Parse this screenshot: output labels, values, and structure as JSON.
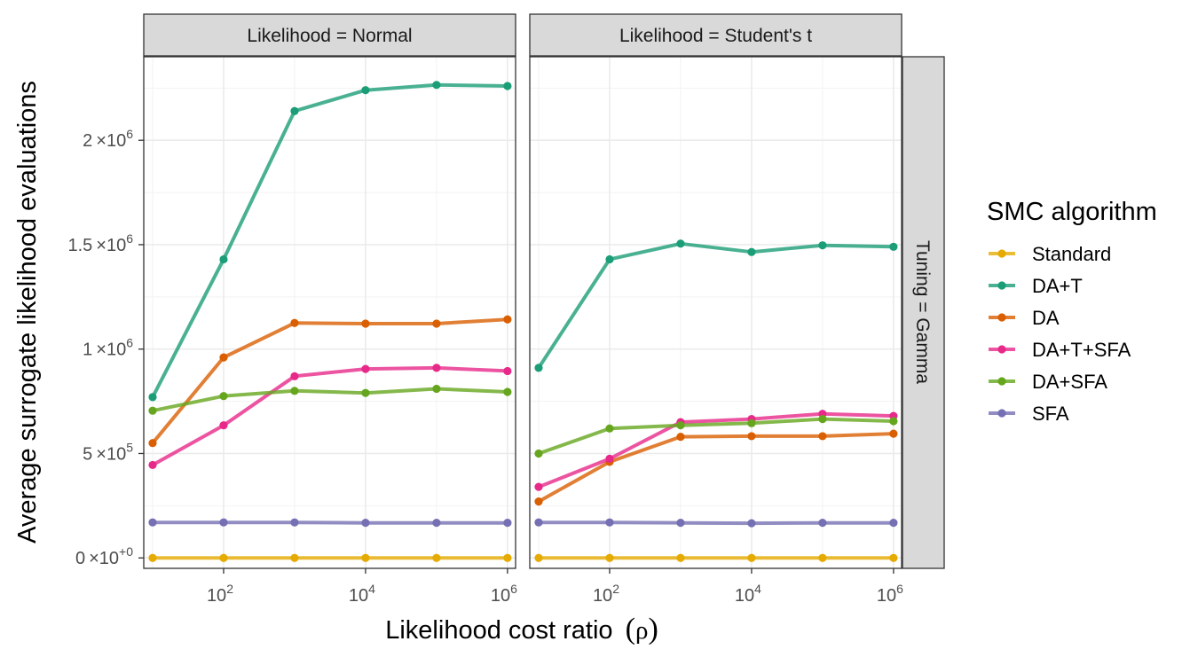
{
  "chart_data": {
    "type": "line",
    "facet_cols": [
      "Likelihood = Normal",
      "Likelihood = Student's t"
    ],
    "facet_row": "Tuning = Gamma",
    "xlabel_text": "Likelihood cost ratio",
    "xlabel_symbol": "ρ",
    "ylabel": "Average surrogate likelihood evaluations",
    "x_scale": "log10",
    "x": [
      10,
      100,
      1000,
      10000,
      100000,
      1000000
    ],
    "xlim": [
      7.5,
      1300000
    ],
    "ylim": [
      -50000,
      2400000
    ],
    "x_ticks": [
      {
        "value": 100,
        "base": "10",
        "exp": "2"
      },
      {
        "value": 10000,
        "base": "10",
        "exp": "4"
      },
      {
        "value": 1000000,
        "base": "10",
        "exp": "6"
      }
    ],
    "y_ticks": [
      {
        "value": 0,
        "mantissa": "0",
        "exp": "+0"
      },
      {
        "value": 500000,
        "mantissa": "5",
        "exp": "5"
      },
      {
        "value": 1000000,
        "mantissa": "1",
        "exp": "6"
      },
      {
        "value": 1500000,
        "mantissa": "1.5",
        "exp": "6"
      },
      {
        "value": 2000000,
        "mantissa": "2",
        "exp": "6"
      }
    ],
    "grid": true,
    "legend_title": "SMC algorithm",
    "legend_position": "right",
    "panels": [
      {
        "facet": "Likelihood = Normal",
        "series": [
          {
            "name": "Standard",
            "color": "#E6AB02",
            "values": [
              0,
              0,
              0,
              0,
              0,
              0
            ]
          },
          {
            "name": "DA+T",
            "color": "#1B9E77",
            "values": [
              770000,
              1430000,
              2140000,
              2240000,
              2265000,
              2260000
            ]
          },
          {
            "name": "DA",
            "color": "#D95F02",
            "values": [
              550000,
              960000,
              1125000,
              1122000,
              1122000,
              1142000
            ]
          },
          {
            "name": "DA+T+SFA",
            "color": "#E7298A",
            "values": [
              445000,
              635000,
              870000,
              905000,
              910000,
              895000
            ]
          },
          {
            "name": "DA+SFA",
            "color": "#66A61E",
            "values": [
              705000,
              775000,
              800000,
              790000,
              810000,
              795000
            ]
          },
          {
            "name": "SFA",
            "color": "#7570B3",
            "values": [
              170000,
              170000,
              170000,
              168000,
              168000,
              168000
            ]
          }
        ]
      },
      {
        "facet": "Likelihood = Student's t",
        "series": [
          {
            "name": "Standard",
            "color": "#E6AB02",
            "values": [
              0,
              0,
              0,
              0,
              0,
              0
            ]
          },
          {
            "name": "DA+T",
            "color": "#1B9E77",
            "values": [
              910000,
              1430000,
              1505000,
              1465000,
              1497000,
              1490000
            ]
          },
          {
            "name": "DA",
            "color": "#D95F02",
            "values": [
              270000,
              460000,
              580000,
              583000,
              583000,
              595000
            ]
          },
          {
            "name": "DA+T+SFA",
            "color": "#E7298A",
            "values": [
              340000,
              475000,
              650000,
              665000,
              690000,
              680000
            ]
          },
          {
            "name": "DA+SFA",
            "color": "#66A61E",
            "values": [
              500000,
              620000,
              635000,
              645000,
              665000,
              655000
            ]
          },
          {
            "name": "SFA",
            "color": "#7570B3",
            "values": [
              170000,
              170000,
              168000,
              166000,
              168000,
              168000
            ]
          }
        ]
      }
    ]
  }
}
